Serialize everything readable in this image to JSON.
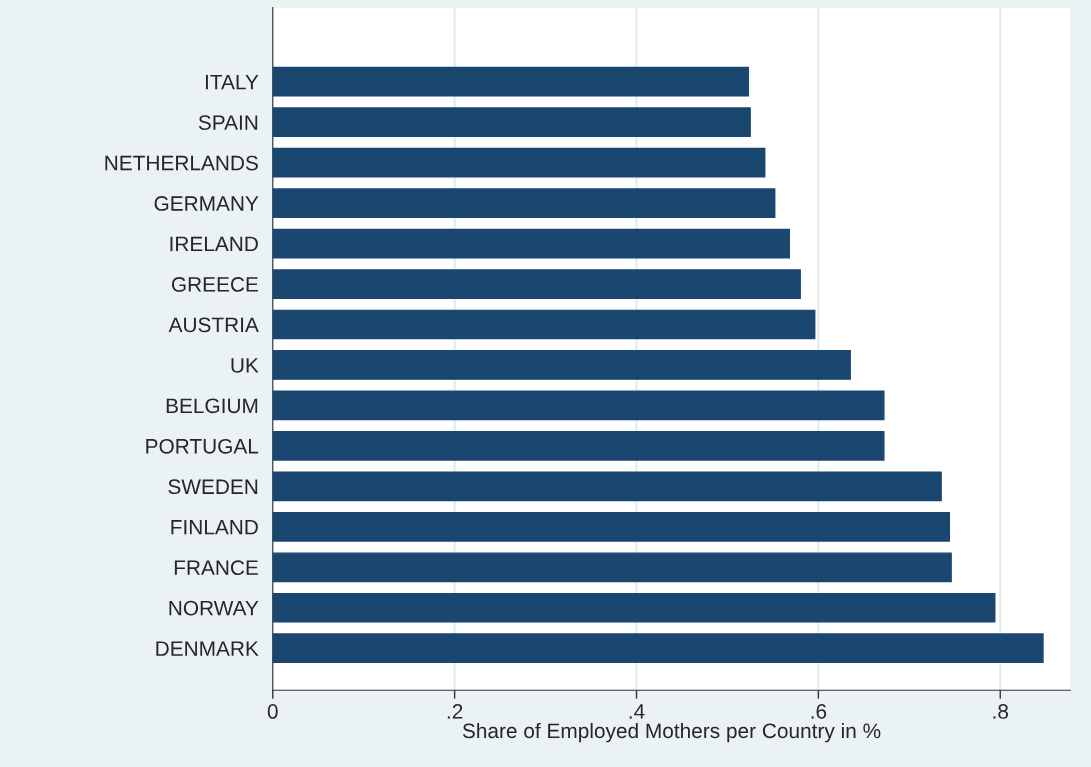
{
  "chart_data": {
    "type": "bar",
    "orientation": "horizontal",
    "xlabel": "Share of Employed Mothers per Country in %",
    "categories": [
      "ITALY",
      "SPAIN",
      "NETHERLANDS",
      "GERMANY",
      "IRELAND",
      "GREECE",
      "AUSTRIA",
      "UK",
      "BELGIUM",
      "PORTUGAL",
      "SWEDEN",
      "FINLAND",
      "FRANCE",
      "NORWAY",
      "DENMARK"
    ],
    "values": [
      0.523,
      0.525,
      0.541,
      0.552,
      0.568,
      0.58,
      0.596,
      0.635,
      0.672,
      0.672,
      0.735,
      0.744,
      0.746,
      0.794,
      0.847
    ],
    "color": "#1a476f",
    "xlim": [
      0,
      0.877
    ],
    "xticks": [
      0,
      {
        "value": 0.2,
        "label": ".2"
      },
      {
        "value": 0.4,
        "label": ".4"
      },
      {
        "value": 0.6,
        "label": ".6"
      },
      {
        "value": 0.8,
        "label": ".8"
      }
    ],
    "grid": "x",
    "legend": false
  }
}
